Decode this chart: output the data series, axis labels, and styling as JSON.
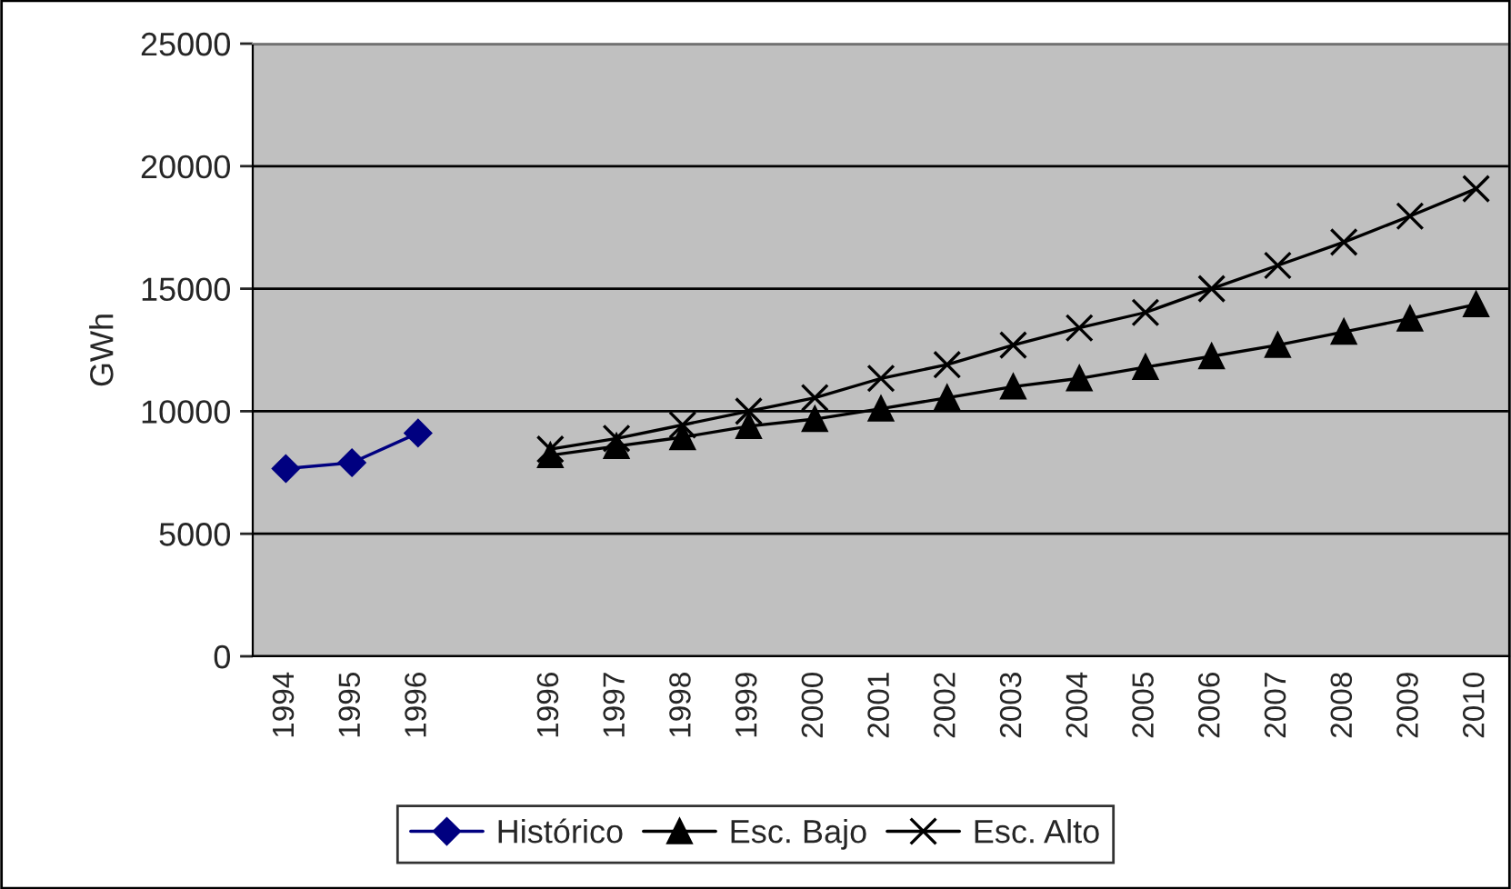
{
  "chart_data": {
    "type": "line",
    "ylabel": "GWh",
    "categories": [
      "1994",
      "1995",
      "1996",
      null,
      "1996",
      "1997",
      "1998",
      "1999",
      "2000",
      "2001",
      "2002",
      "2003",
      "2004",
      "2005",
      "2006",
      "2007",
      "2008",
      "2009",
      "2010"
    ],
    "series": [
      {
        "name": "Histórico",
        "color": "#000080",
        "marker": "diamond",
        "values": [
          7660,
          7900,
          9110,
          null,
          null,
          null,
          null,
          null,
          null,
          null,
          null,
          null,
          null,
          null,
          null,
          null,
          null,
          null,
          null
        ]
      },
      {
        "name": "Esc. Bajo",
        "color": "#000000",
        "marker": "triangle",
        "values": [
          null,
          null,
          null,
          null,
          8200,
          8570,
          8940,
          9390,
          9680,
          10100,
          10550,
          11000,
          11340,
          11800,
          12240,
          12700,
          13240,
          13780,
          14360
        ]
      },
      {
        "name": "Esc. Alto",
        "color": "#000000",
        "marker": "cross",
        "values": [
          null,
          null,
          null,
          null,
          8450,
          8890,
          9440,
          10000,
          10550,
          11340,
          11900,
          12700,
          13400,
          14030,
          15000,
          15950,
          16900,
          17960,
          19080
        ]
      }
    ],
    "ylim": [
      0,
      25000
    ],
    "yticks": [
      0,
      5000,
      10000,
      15000,
      20000,
      25000
    ],
    "grid": "y",
    "legend": "bottom",
    "line_style": "solid"
  }
}
